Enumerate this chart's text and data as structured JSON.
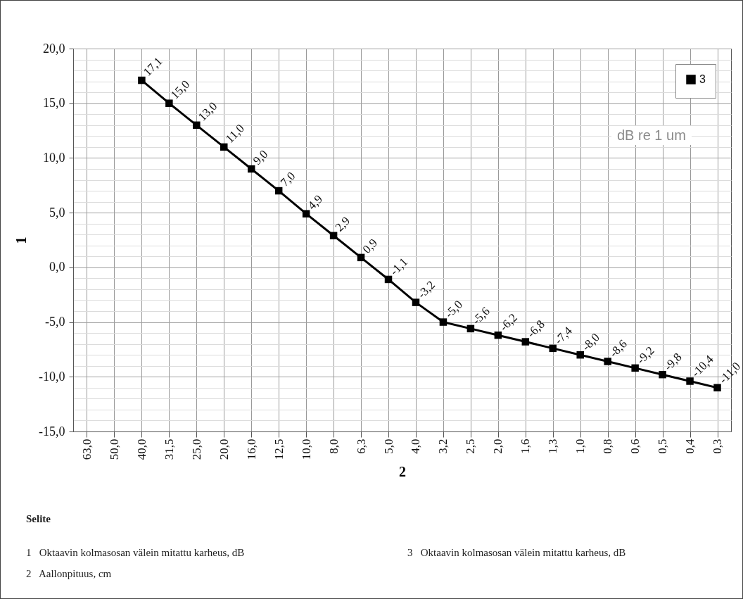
{
  "chart_data": {
    "type": "line",
    "xlabel": "2",
    "ylabel": "1",
    "categories": [
      "63,0",
      "50,0",
      "40,0",
      "31,5",
      "25,0",
      "20,0",
      "16,0",
      "12,5",
      "10,0",
      "8,0",
      "6,3",
      "5,0",
      "4,0",
      "3,2",
      "2,5",
      "2,0",
      "1,6",
      "1,3",
      "1,0",
      "0,8",
      "0,6",
      "0,5",
      "0,4",
      "0,3"
    ],
    "series": [
      {
        "name": "3",
        "color": "#000000",
        "values": [
          null,
          null,
          17.1,
          15.0,
          13.0,
          11.0,
          9.0,
          7.0,
          4.9,
          2.9,
          0.9,
          -1.1,
          -3.2,
          -5.0,
          -5.6,
          -6.2,
          -6.8,
          -7.4,
          -8.0,
          -8.6,
          -9.2,
          -9.8,
          -10.4,
          -11.0
        ]
      }
    ],
    "ylim": [
      -15,
      20
    ],
    "yticks": [
      {
        "value": -15,
        "label": "-15,0"
      },
      {
        "value": -14,
        "label": null
      },
      {
        "value": -13,
        "label": null
      },
      {
        "value": -12,
        "label": null
      },
      {
        "value": -11,
        "label": null
      },
      {
        "value": -10,
        "label": "-10,0"
      },
      {
        "value": -9,
        "label": null
      },
      {
        "value": -8,
        "label": null
      },
      {
        "value": -7,
        "label": null
      },
      {
        "value": -6,
        "label": null
      },
      {
        "value": -5,
        "label": "-5,0"
      },
      {
        "value": -4,
        "label": null
      },
      {
        "value": -3,
        "label": null
      },
      {
        "value": -2,
        "label": null
      },
      {
        "value": -1,
        "label": null
      },
      {
        "value": 0,
        "label": "0,0"
      },
      {
        "value": 1,
        "label": null
      },
      {
        "value": 2,
        "label": null
      },
      {
        "value": 3,
        "label": null
      },
      {
        "value": 4,
        "label": null
      },
      {
        "value": 5,
        "label": "5,0"
      },
      {
        "value": 6,
        "label": null
      },
      {
        "value": 7,
        "label": null
      },
      {
        "value": 8,
        "label": null
      },
      {
        "value": 9,
        "label": null
      },
      {
        "value": 10,
        "label": "10,0"
      },
      {
        "value": 11,
        "label": null
      },
      {
        "value": 12,
        "label": null
      },
      {
        "value": 13,
        "label": null
      },
      {
        "value": 14,
        "label": null
      },
      {
        "value": 15,
        "label": "15,0"
      },
      {
        "value": 16,
        "label": null
      },
      {
        "value": 17,
        "label": null
      },
      {
        "value": 18,
        "label": null
      },
      {
        "value": 19,
        "label": null
      },
      {
        "value": 20,
        "label": "20,0"
      }
    ],
    "value_labels": [
      null,
      null,
      "17,1",
      "15,0",
      "13,0",
      "11,0",
      "9,0",
      "7,0",
      "4,9",
      "2,9",
      "0,9",
      "-1,1",
      "-3,2",
      "-5,0",
      "-5,6",
      "-6,2",
      "-6,8",
      "-7,4",
      "-8,0",
      "-8,6",
      "-9,2",
      "-9,8",
      "-10,4",
      "-11,0"
    ],
    "grid": true,
    "legend": "top right",
    "marker": "square",
    "line_style": "solid",
    "annotations": [
      "dB re 1 um",
      "Selite",
      "1   Oktaavin kolmasosan välein mitattu karheus, dB",
      "2   Aallonpituus, cm",
      "3   Oktaavin kolmasosan välein mitattu karheus, dB"
    ]
  }
}
